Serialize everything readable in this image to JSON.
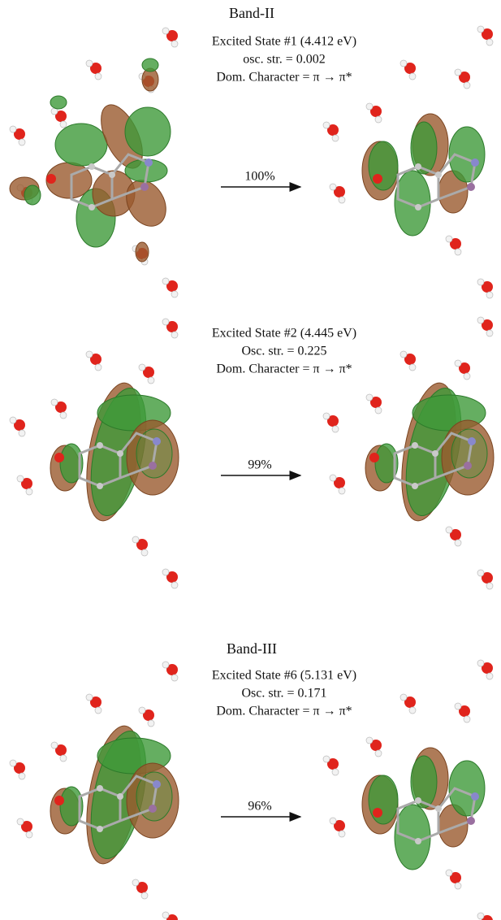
{
  "panels": [
    {
      "band": "Band-II",
      "state": "Excited State #1 (4.412 eV)",
      "osc": "osc. str. = 0.002",
      "character": "Dom. Character = π → π*",
      "contribution": "100%"
    },
    {
      "state": "Excited State #2 (4.445 eV)",
      "osc": "Osc. str. = 0.225",
      "character": "Dom. Character = π → π*",
      "contribution": "99%"
    },
    {
      "band": "Band-III",
      "state": "Excited State #6 (5.131 eV)",
      "osc": "Osc. str. = 0.171",
      "character": "Dom. Character = π → π*",
      "contribution": "96%"
    }
  ]
}
